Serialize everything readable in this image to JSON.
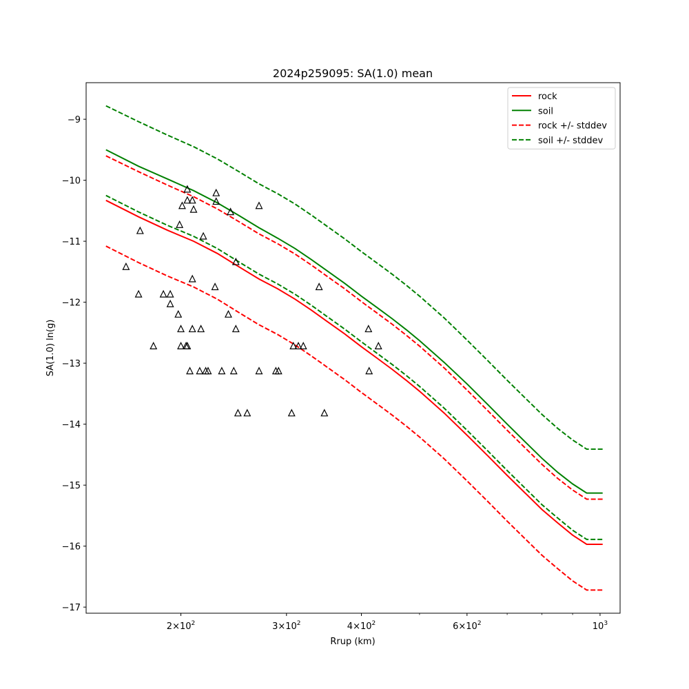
{
  "chart_data": {
    "type": "line",
    "title": "2024p259095: SA(1.0) mean",
    "xlabel": "Rrup (km)",
    "ylabel": "SA(1.0) ln(g)",
    "x_scale": "log",
    "xlim": [
      139,
      1080
    ],
    "ylim": [
      -17.1,
      -8.4
    ],
    "x_ticks": [
      {
        "value": 200,
        "mantissa": "2",
        "exp": "2"
      },
      {
        "value": 300,
        "mantissa": "3",
        "exp": "2"
      },
      {
        "value": 400,
        "mantissa": "4",
        "exp": "2"
      },
      {
        "value": 600,
        "mantissa": "6",
        "exp": "2"
      },
      {
        "value": 1000,
        "mantissa": "10",
        "exp": "3"
      }
    ],
    "x_minor_ticks": [
      500,
      700,
      800,
      900
    ],
    "y_ticks": [
      {
        "value": -9,
        "label": "−9"
      },
      {
        "value": -10,
        "label": "−10"
      },
      {
        "value": -11,
        "label": "−11"
      },
      {
        "value": -12,
        "label": "−12"
      },
      {
        "value": -13,
        "label": "−13"
      },
      {
        "value": -14,
        "label": "−14"
      },
      {
        "value": -15,
        "label": "−15"
      },
      {
        "value": -16,
        "label": "−16"
      },
      {
        "value": -17,
        "label": "−17"
      }
    ],
    "grid": false,
    "legend_position": "top-right",
    "x": [
      150,
      170,
      190,
      210,
      230,
      250,
      270,
      290,
      310,
      330,
      350,
      375,
      400,
      425,
      450,
      475,
      500,
      550,
      600,
      650,
      700,
      750,
      800,
      850,
      900,
      950,
      1010
    ],
    "series": [
      {
        "name": "rock",
        "color": "#ff0000",
        "style": "solid",
        "values": [
          -10.33,
          -10.6,
          -10.82,
          -11.0,
          -11.2,
          -11.42,
          -11.62,
          -11.78,
          -11.95,
          -12.13,
          -12.31,
          -12.52,
          -12.73,
          -12.92,
          -13.1,
          -13.28,
          -13.46,
          -13.82,
          -14.18,
          -14.52,
          -14.84,
          -15.13,
          -15.4,
          -15.62,
          -15.82,
          -15.97,
          -15.97
        ]
      },
      {
        "name": "soil",
        "color": "#008000",
        "style": "solid",
        "values": [
          -9.5,
          -9.77,
          -9.98,
          -10.17,
          -10.37,
          -10.58,
          -10.78,
          -10.95,
          -11.12,
          -11.3,
          -11.48,
          -11.69,
          -11.9,
          -12.09,
          -12.27,
          -12.45,
          -12.63,
          -12.99,
          -13.34,
          -13.68,
          -14.0,
          -14.29,
          -14.56,
          -14.79,
          -14.98,
          -15.13,
          -15.13
        ]
      },
      {
        "name": "rock +/- stddev",
        "color": "#ff0000",
        "style": "dashed",
        "values": [
          -9.6,
          -9.86,
          -10.08,
          -10.27,
          -10.47,
          -10.68,
          -10.88,
          -11.04,
          -11.21,
          -11.39,
          -11.57,
          -11.78,
          -11.99,
          -12.18,
          -12.36,
          -12.54,
          -12.72,
          -13.08,
          -13.44,
          -13.78,
          -14.1,
          -14.39,
          -14.66,
          -14.89,
          -15.08,
          -15.23,
          -15.23
        ]
      },
      {
        "name": "rock +/- stddev",
        "color": "#ff0000",
        "style": "dashed",
        "legend": false,
        "values": [
          -11.08,
          -11.35,
          -11.57,
          -11.75,
          -11.95,
          -12.17,
          -12.37,
          -12.53,
          -12.7,
          -12.88,
          -13.06,
          -13.27,
          -13.48,
          -13.67,
          -13.85,
          -14.03,
          -14.21,
          -14.57,
          -14.93,
          -15.27,
          -15.59,
          -15.88,
          -16.15,
          -16.37,
          -16.57,
          -16.72,
          -16.72
        ]
      },
      {
        "name": "soil +/- stddev",
        "color": "#008000",
        "style": "dashed",
        "values": [
          -8.78,
          -9.04,
          -9.26,
          -9.45,
          -9.65,
          -9.86,
          -10.06,
          -10.22,
          -10.39,
          -10.57,
          -10.75,
          -10.96,
          -11.17,
          -11.36,
          -11.54,
          -11.72,
          -11.9,
          -12.26,
          -12.62,
          -12.96,
          -13.28,
          -13.57,
          -13.84,
          -14.07,
          -14.26,
          -14.41,
          -14.41
        ]
      },
      {
        "name": "soil +/- stddev",
        "color": "#008000",
        "style": "dashed",
        "legend": false,
        "values": [
          -10.25,
          -10.52,
          -10.74,
          -10.92,
          -11.12,
          -11.34,
          -11.54,
          -11.7,
          -11.87,
          -12.05,
          -12.23,
          -12.44,
          -12.65,
          -12.84,
          -13.02,
          -13.2,
          -13.38,
          -13.74,
          -14.1,
          -14.44,
          -14.76,
          -15.05,
          -15.32,
          -15.54,
          -15.74,
          -15.89,
          -15.89
        ]
      }
    ],
    "scatter": {
      "marker": "triangle",
      "color": "#000000",
      "points": [
        [
          162,
          -11.42
        ],
        [
          170,
          -11.87
        ],
        [
          171,
          -10.83
        ],
        [
          180,
          -12.72
        ],
        [
          187,
          -11.87
        ],
        [
          192,
          -11.87
        ],
        [
          192,
          -12.03
        ],
        [
          198,
          -12.2
        ],
        [
          199,
          -10.73
        ],
        [
          200,
          -12.44
        ],
        [
          200,
          -12.72
        ],
        [
          201,
          -10.42
        ],
        [
          204,
          -12.72
        ],
        [
          205,
          -12.72
        ],
        [
          205,
          -10.15
        ],
        [
          205,
          -10.33
        ],
        [
          207,
          -13.13
        ],
        [
          209,
          -10.33
        ],
        [
          209,
          -11.62
        ],
        [
          209,
          -12.44
        ],
        [
          210,
          -10.48
        ],
        [
          215,
          -13.13
        ],
        [
          216,
          -12.44
        ],
        [
          218,
          -10.92
        ],
        [
          220,
          -13.13
        ],
        [
          222,
          -13.13
        ],
        [
          228,
          -11.75
        ],
        [
          229,
          -10.35
        ],
        [
          229,
          -10.21
        ],
        [
          234,
          -13.13
        ],
        [
          240,
          -12.2
        ],
        [
          242,
          -10.52
        ],
        [
          245,
          -13.13
        ],
        [
          247,
          -11.34
        ],
        [
          247,
          -12.44
        ],
        [
          249,
          -13.82
        ],
        [
          258,
          -13.82
        ],
        [
          270,
          -13.13
        ],
        [
          270,
          -10.42
        ],
        [
          288,
          -13.13
        ],
        [
          291,
          -13.13
        ],
        [
          306,
          -13.82
        ],
        [
          308,
          -12.72
        ],
        [
          314,
          -12.72
        ],
        [
          320,
          -12.72
        ],
        [
          340,
          -11.75
        ],
        [
          347,
          -13.82
        ],
        [
          411,
          -12.44
        ],
        [
          412,
          -13.13
        ],
        [
          427,
          -12.72
        ]
      ]
    }
  }
}
